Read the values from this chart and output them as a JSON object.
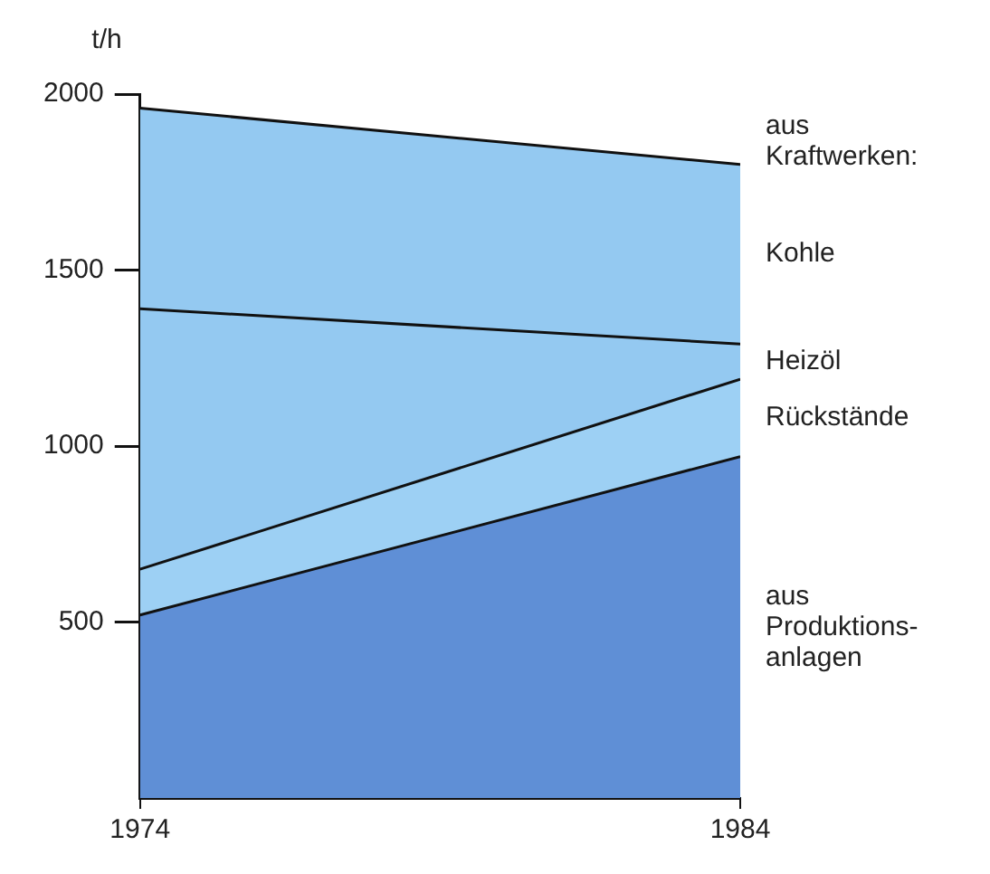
{
  "chart_data": {
    "type": "area",
    "stacked": true,
    "ylabel": "t/h",
    "x": [
      1974,
      1984
    ],
    "xlim": [
      1974,
      1984
    ],
    "xticks": [
      1974,
      1984
    ],
    "ylim": [
      0,
      2000
    ],
    "yticks": [
      500,
      1000,
      1500,
      2000
    ],
    "grid": false,
    "legend": false,
    "annotations": [
      "aus\nKraftwerken:"
    ],
    "series": [
      {
        "name": "aus\nProduktions-\nanlagen",
        "color": "#5f8fd6",
        "values": [
          520,
          970
        ]
      },
      {
        "name": "Rückstände",
        "color": "#9dd0f4",
        "values": [
          130,
          220
        ]
      },
      {
        "name": "Heizöl",
        "color": "#94c9f1",
        "values": [
          740,
          100
        ]
      },
      {
        "name": "Kohle",
        "color": "#94c9f1",
        "values": [
          570,
          510
        ]
      }
    ]
  }
}
